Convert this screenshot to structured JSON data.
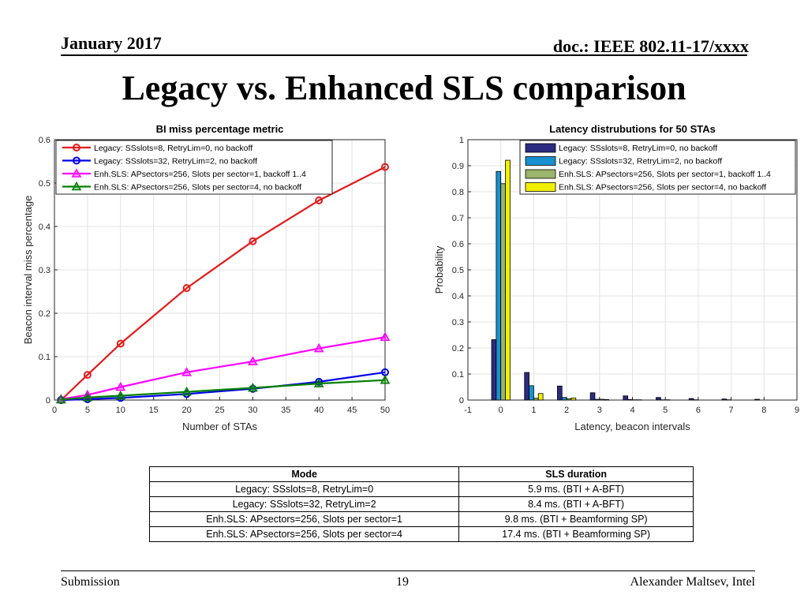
{
  "header": {
    "date": "January 2017",
    "doc": "doc.: IEEE 802.11-17/xxxx"
  },
  "slide": {
    "title": "Legacy vs. Enhanced SLS comparison"
  },
  "chart_data": [
    {
      "type": "line",
      "title": "BI miss percentage metric",
      "xlabel": "Number of STAs",
      "ylabel": "Beacon interval miss percentage",
      "xlim": [
        0,
        50
      ],
      "ylim": [
        0,
        0.6
      ],
      "xticks": [
        0,
        5,
        10,
        15,
        20,
        25,
        30,
        35,
        40,
        45,
        50
      ],
      "yticks": [
        0,
        0.1,
        0.2,
        0.3,
        0.4,
        0.5,
        0.6
      ],
      "grid": true,
      "legend_position": "top-left",
      "x": [
        1,
        5,
        10,
        20,
        30,
        40,
        50
      ],
      "series": [
        {
          "name": "Legacy: SSslots=8, RetryLim=0, no backoff",
          "color": "#e41a1c",
          "marker": "circle",
          "values": [
            0,
            0.058,
            0.13,
            0.258,
            0.366,
            0.46,
            0.537
          ]
        },
        {
          "name": "Legacy: SSslots=32, RetryLim=2, no backoff",
          "color": "#0000ee",
          "marker": "circle",
          "values": [
            0,
            0.002,
            0.005,
            0.014,
            0.026,
            0.042,
            0.064
          ]
        },
        {
          "name": "Enh.SLS: APsectors=256, Slots per sector=1, backoff 1..4",
          "color": "#ff00ff",
          "marker": "triangle",
          "values": [
            0.002,
            0.012,
            0.03,
            0.064,
            0.089,
            0.119,
            0.145
          ]
        },
        {
          "name": "Enh.SLS: APsectors=256, Slots per sector=4, no backoff",
          "color": "#008000",
          "marker": "triangle",
          "values": [
            0.001,
            0.006,
            0.01,
            0.019,
            0.028,
            0.038,
            0.046
          ]
        }
      ]
    },
    {
      "type": "bar",
      "title": "Latency distrubutions for 50 STAs",
      "xlabel": "Latency, beacon intervals",
      "ylabel": "Probability",
      "xlim": [
        -1,
        9
      ],
      "ylim": [
        0,
        1
      ],
      "xticks": [
        -1,
        0,
        1,
        2,
        3,
        4,
        5,
        6,
        7,
        8,
        9
      ],
      "yticks": [
        0,
        0.1,
        0.2,
        0.3,
        0.4,
        0.5,
        0.6,
        0.7,
        0.8,
        0.9,
        1
      ],
      "grid": true,
      "legend_position": "top-right",
      "categories": [
        0,
        1,
        2,
        3,
        4,
        5,
        6,
        7,
        8
      ],
      "series": [
        {
          "name": "Legacy: SSslots=8, RetryLim=0, no backoff",
          "color": "#2b2b80",
          "values": [
            0.232,
            0.106,
            0.054,
            0.028,
            0.016,
            0.01,
            0.006,
            0.004,
            0.003
          ]
        },
        {
          "name": "Legacy: SSslots=32, RetryLim=2, no backoff",
          "color": "#1a8fd0",
          "values": [
            0.878,
            0.055,
            0.01,
            0.003,
            0.002,
            0.001,
            0.001,
            0.001,
            0
          ]
        },
        {
          "name": "Enh.SLS: APsectors=256, Slots per sector=1, backoff 1..4",
          "color": "#9bb56c",
          "values": [
            0.831,
            0.007,
            0.005,
            0.003,
            0.001,
            0.001,
            0,
            0,
            0
          ]
        },
        {
          "name": "Enh.SLS: APsectors=256, Slots per sector=4, no backoff",
          "color": "#f0f000",
          "values": [
            0.921,
            0.025,
            0.008,
            0.002,
            0.001,
            0,
            0,
            0,
            0
          ]
        }
      ]
    }
  ],
  "table": {
    "headers": [
      "Mode",
      "SLS duration"
    ],
    "rows": [
      [
        "Legacy: SSslots=8, RetryLim=0",
        "5.9 ms. (BTI + A-BFT)"
      ],
      [
        "Legacy: SSslots=32, RetryLim=2",
        "8.4 ms. (BTI + A-BFT)"
      ],
      [
        "Enh.SLS: APsectors=256, Slots per sector=1",
        "9.8 ms. (BTI + Beamforming SP)"
      ],
      [
        "Enh.SLS: APsectors=256, Slots per sector=4",
        "17.4 ms. (BTI + Beamforming SP)"
      ]
    ]
  },
  "footer": {
    "left": "Submission",
    "page": "19",
    "right": "Alexander Maltsev, Intel"
  }
}
